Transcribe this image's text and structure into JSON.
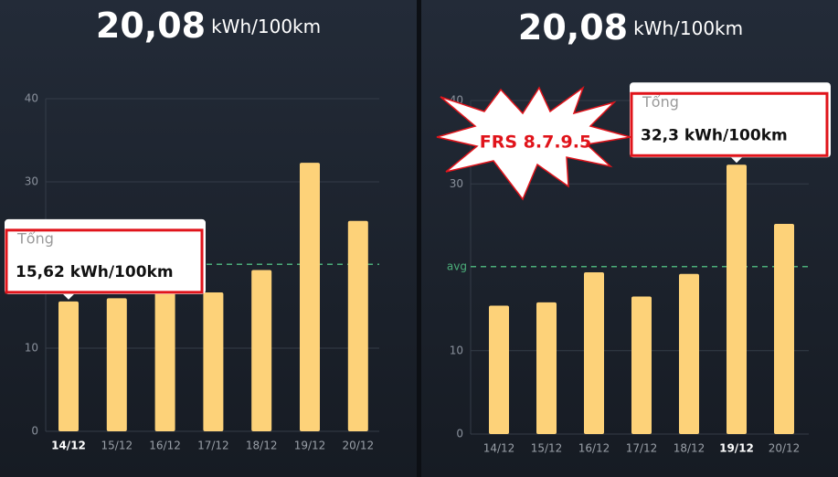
{
  "chart_data": [
    {
      "type": "bar",
      "title": "20,08",
      "title_unit": "kWh/100km",
      "categories": [
        "14/12",
        "15/12",
        "16/12",
        "17/12",
        "18/12",
        "19/12",
        "20/12"
      ],
      "values": [
        15.62,
        16,
        19.5,
        16.7,
        19.4,
        32.3,
        25.3
      ],
      "value_labels": [
        "15,62 kWh/100km",
        null,
        null,
        null,
        null,
        null,
        null
      ],
      "tooltip_title": "Tổng",
      "color": "#fdd279",
      "avg": 20.08,
      "ylim": [
        0,
        40
      ],
      "yticks": [
        0,
        10,
        30,
        40
      ],
      "grid": true
    },
    {
      "type": "bar",
      "title": "20,08",
      "title_unit": "kWh/100km",
      "categories": [
        "14/12",
        "15/12",
        "16/12",
        "17/12",
        "18/12",
        "19/12",
        "20/12"
      ],
      "values": [
        15.4,
        15.8,
        19.4,
        16.5,
        19.2,
        32.3,
        25.2
      ],
      "value_labels": [
        null,
        null,
        null,
        null,
        null,
        "32,3 kWh/100km",
        null
      ],
      "tooltip_title": "Tổng",
      "color": "#fdd279",
      "avg": 20.08,
      "avg_label": "avg",
      "annotation": "FRS 8.7.9.5",
      "ylim": [
        0,
        40
      ],
      "yticks": [
        0,
        10,
        30,
        40
      ],
      "grid": true
    }
  ]
}
